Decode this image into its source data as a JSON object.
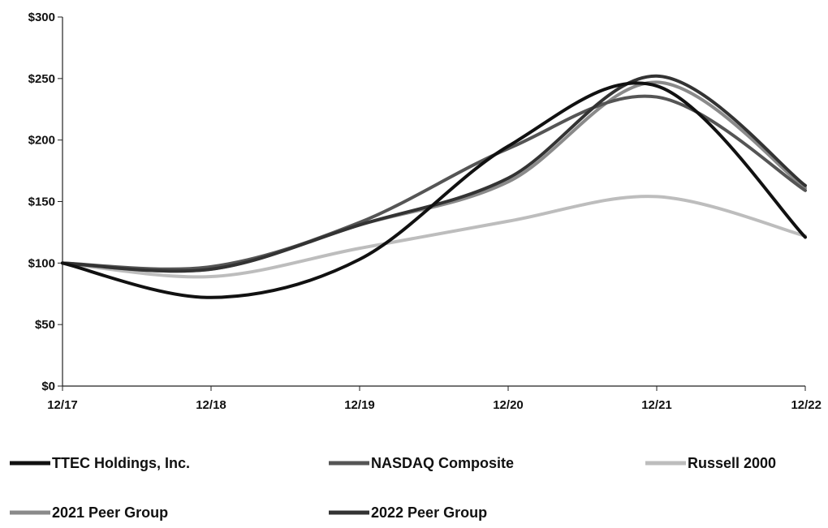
{
  "chart_data": {
    "type": "line",
    "title": "",
    "xlabel": "",
    "ylabel": "",
    "categories": [
      "12/17",
      "12/18",
      "12/19",
      "12/20",
      "12/21",
      "12/22"
    ],
    "y_ticks": [
      "$0",
      "$50",
      "$100",
      "$150",
      "$200",
      "$250",
      "$300"
    ],
    "ylim": [
      0,
      300
    ],
    "grid": false,
    "legend_position": "bottom",
    "series": [
      {
        "name": "TTEC Holdings, Inc.",
        "color": "#111111",
        "values": [
          100,
          72,
          103,
          195,
          244,
          121
        ]
      },
      {
        "name": "NASDAQ Composite",
        "color": "#555555",
        "values": [
          100,
          97,
          133,
          193,
          235,
          159
        ]
      },
      {
        "name": "Russell 2000",
        "color": "#bdbdbd",
        "values": [
          100,
          89,
          112,
          134,
          154,
          122
        ]
      },
      {
        "name": "2021 Peer Group",
        "color": "#8a8a8a",
        "values": [
          100,
          95,
          131,
          166,
          247,
          161
        ]
      },
      {
        "name": "2022 Peer Group",
        "color": "#333333",
        "values": [
          100,
          95,
          131,
          169,
          252,
          163
        ]
      }
    ]
  }
}
